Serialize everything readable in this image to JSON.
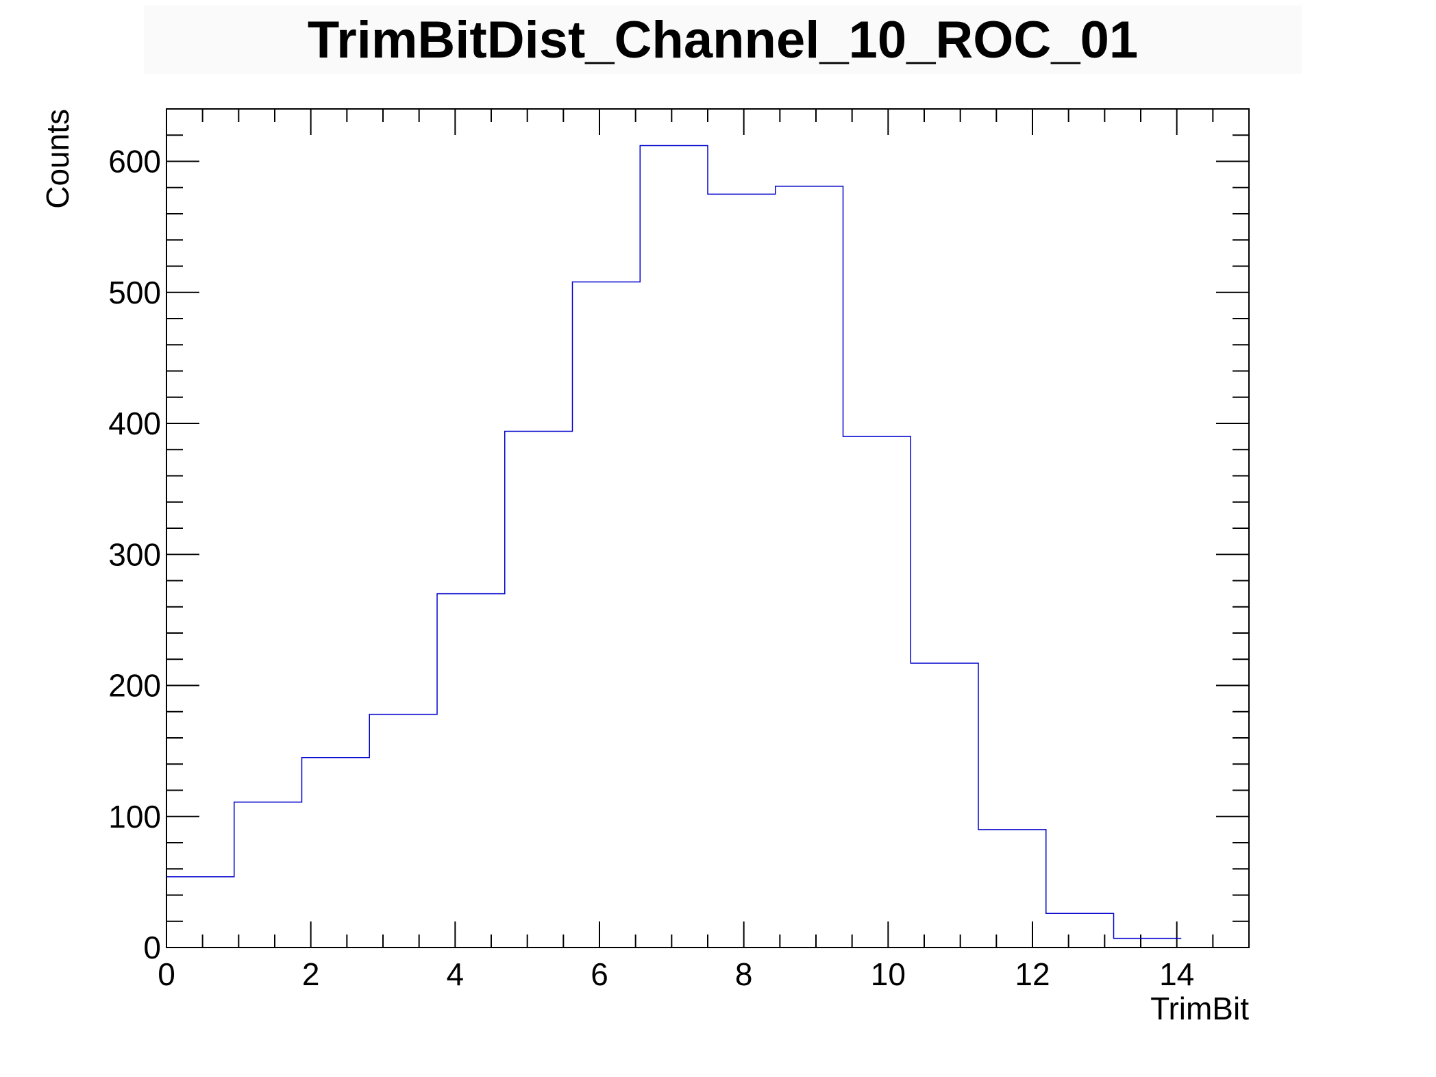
{
  "chart_data": {
    "type": "bar",
    "title": "TrimBitDist_Channel_10_ROC_01",
    "xlabel": "TrimBit",
    "ylabel": "Counts",
    "xlim": [
      0,
      15
    ],
    "ylim": [
      0,
      640
    ],
    "bin_edges": [
      0,
      0.9375,
      1.875,
      2.8125,
      3.75,
      4.6875,
      5.625,
      6.5625,
      7.5,
      8.4375,
      9.375,
      10.3125,
      11.25,
      12.1875,
      13.125,
      14.0625
    ],
    "values": [
      54,
      111,
      145,
      178,
      270,
      394,
      508,
      612,
      575,
      581,
      390,
      217,
      90,
      26,
      7
    ],
    "x_major_ticks": [
      0,
      2,
      4,
      6,
      8,
      10,
      12,
      14
    ],
    "y_major_ticks": [
      0,
      100,
      200,
      300,
      400,
      500,
      600
    ],
    "x_tick_labels": [
      "0",
      "2",
      "4",
      "6",
      "8",
      "10",
      "12",
      "14"
    ],
    "y_tick_labels": [
      "0",
      "100",
      "200",
      "300",
      "400",
      "500",
      "600"
    ],
    "line_color": "#0000cc",
    "grid": false,
    "legend": false
  }
}
